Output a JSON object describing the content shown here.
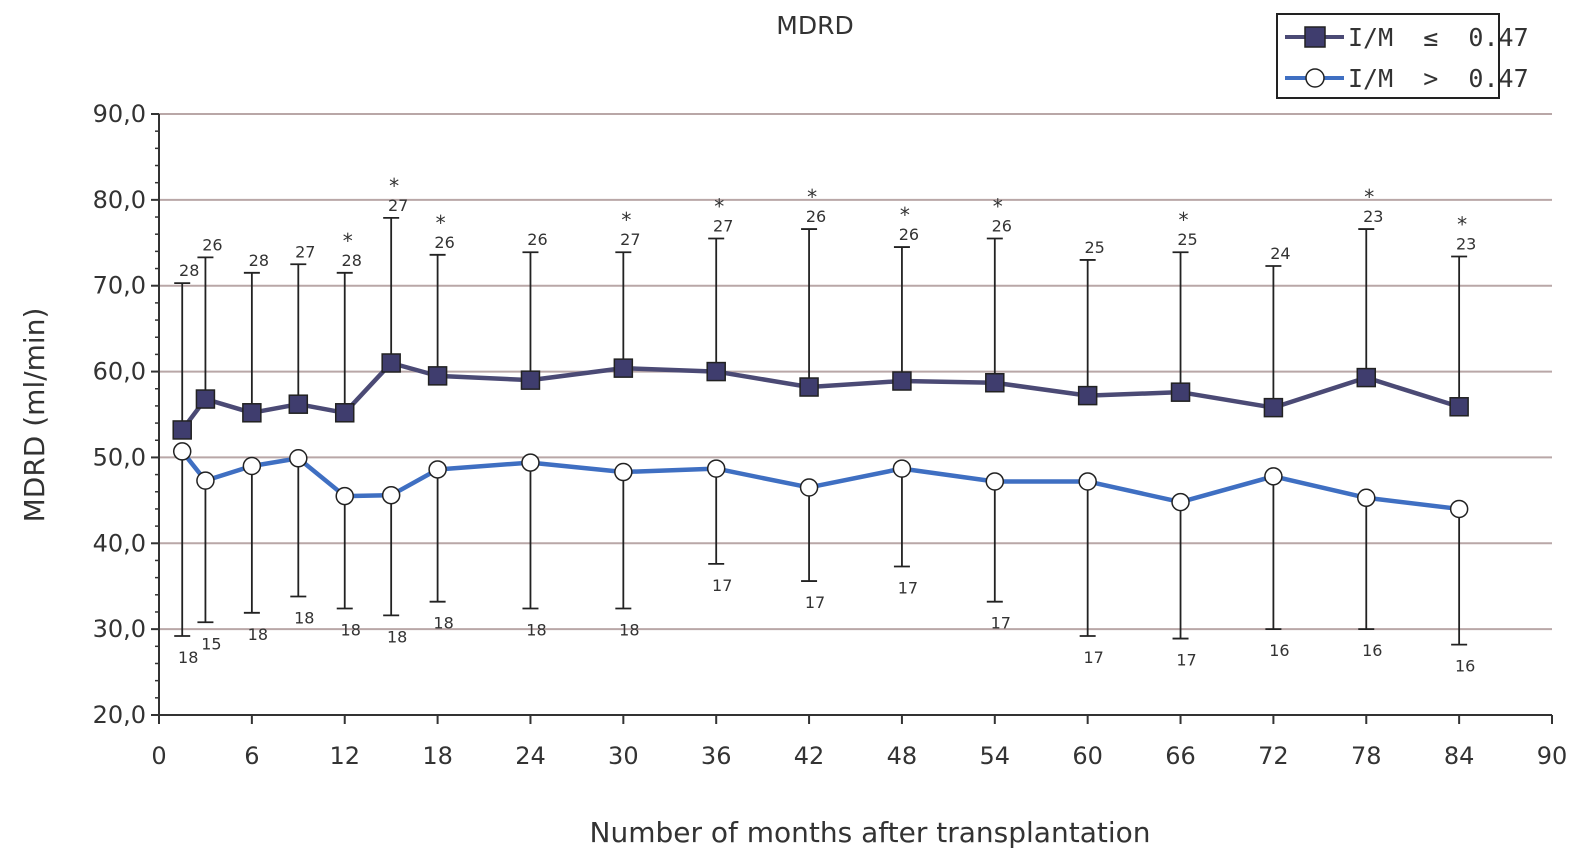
{
  "chart_data": {
    "type": "line",
    "title": "MDRD",
    "xlabel": "Number of months after transplantation",
    "ylabel": "MDRD (ml/min)",
    "xlim": [
      0,
      90
    ],
    "ylim": [
      20,
      90
    ],
    "x_ticks": [
      "0",
      "6",
      "12",
      "18",
      "24",
      "30",
      "36",
      "42",
      "48",
      "54",
      "60",
      "66",
      "72",
      "78",
      "84",
      "90"
    ],
    "y_ticks": [
      "20,0",
      "30,0",
      "40,0",
      "50,0",
      "60,0",
      "70,0",
      "80,0",
      "90,0"
    ],
    "grid": "horizontal",
    "legend_position": "top-right",
    "colors": {
      "series1": "#4b4a75",
      "series1_marker": "#3f3d6e",
      "series2": "#3f6fc2",
      "series2_marker": "#ffffff",
      "gridline": "#b9a7a7",
      "errorbar": "#222222",
      "axis": "#333333"
    },
    "x": [
      1.5,
      3,
      6,
      9,
      12,
      15,
      18,
      24,
      30,
      36,
      42,
      48,
      54,
      60,
      66,
      72,
      78,
      84
    ],
    "series": [
      {
        "name": "I/M  ≤  0.47",
        "marker": "square",
        "values": [
          53.2,
          56.8,
          55.2,
          56.2,
          55.2,
          61.0,
          59.5,
          59.0,
          60.4,
          60.0,
          58.2,
          58.9,
          58.7,
          57.2,
          57.6,
          55.8,
          59.3,
          55.9
        ],
        "error_high": [
          70.3,
          73.3,
          71.5,
          72.5,
          71.5,
          77.9,
          73.6,
          73.9,
          73.9,
          75.5,
          76.6,
          74.5,
          75.5,
          73.0,
          73.9,
          72.3,
          76.6,
          73.4
        ],
        "n_labels": [
          "28",
          "26",
          "28",
          "27",
          "28",
          "27",
          "26",
          "26",
          "27",
          "27",
          "26",
          "26",
          "26",
          "25",
          "25",
          "24",
          "23",
          "23"
        ],
        "significance": [
          "",
          "",
          "",
          "",
          "*",
          "*",
          "*",
          "",
          "*",
          "*",
          "*",
          "*",
          "*",
          "",
          "*",
          "",
          "*",
          "*"
        ]
      },
      {
        "name": "I/M  >  0.47",
        "marker": "circle",
        "values": [
          50.7,
          47.3,
          49.0,
          49.9,
          45.5,
          45.6,
          48.6,
          49.4,
          48.3,
          48.7,
          46.5,
          48.7,
          47.2,
          47.2,
          44.8,
          47.8,
          45.3,
          44.0
        ],
        "error_low": [
          29.2,
          30.8,
          31.9,
          33.8,
          32.4,
          31.6,
          33.2,
          32.4,
          32.4,
          37.6,
          35.6,
          37.3,
          33.2,
          29.2,
          28.9,
          30.0,
          30.0,
          28.2
        ],
        "n_labels": [
          "18",
          "15",
          "18",
          "18",
          "18",
          "18",
          "18",
          "18",
          "18",
          "17",
          "17",
          "17",
          "17",
          "17",
          "17",
          "16",
          "16",
          "16"
        ]
      }
    ]
  }
}
